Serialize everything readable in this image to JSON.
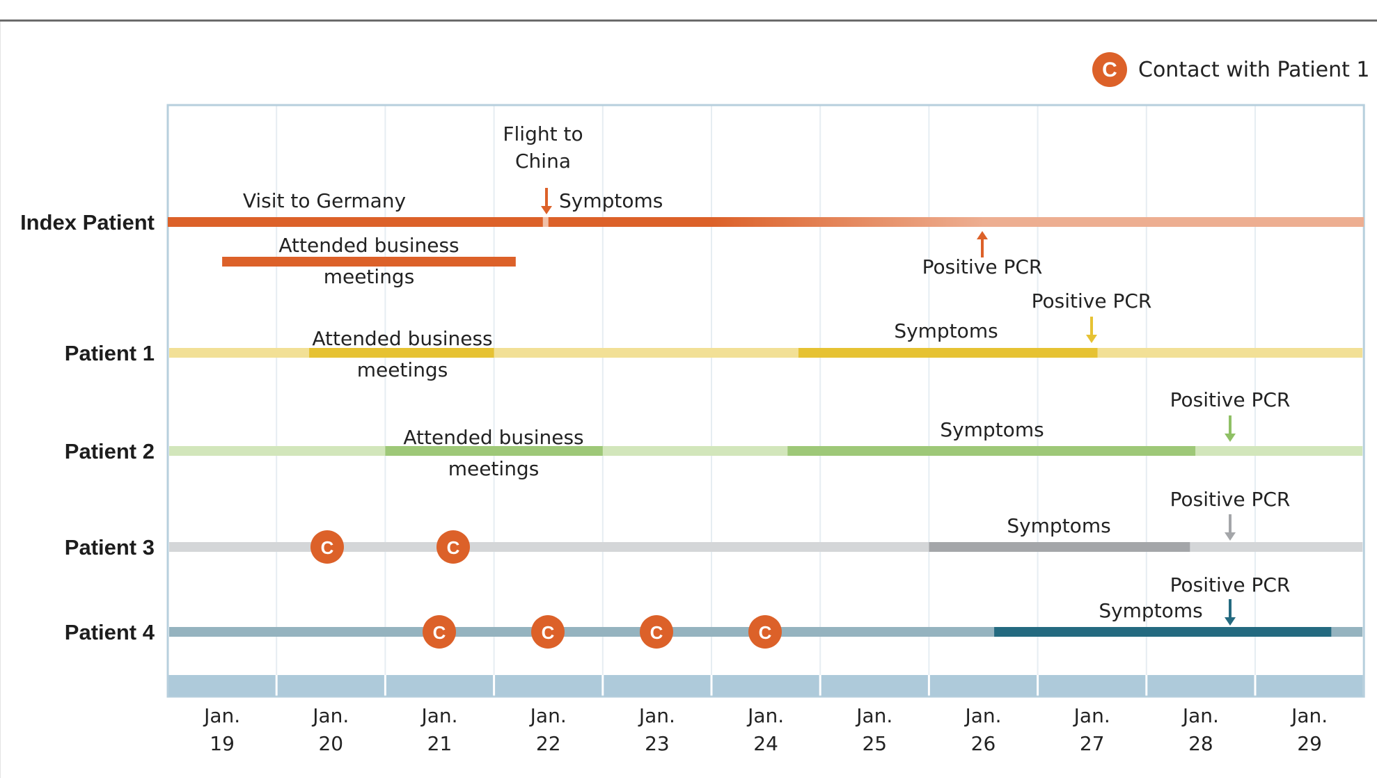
{
  "chart_data": {
    "type": "timeline",
    "title": "",
    "xlabel": "",
    "x_unit": "day of January (fractional; N.0 = start of day N)",
    "xlim": [
      19,
      30
    ],
    "ticks": [
      {
        "line1": "Jan.",
        "line2": "19",
        "day": 19
      },
      {
        "line1": "Jan.",
        "line2": "20",
        "day": 20
      },
      {
        "line1": "Jan.",
        "line2": "21",
        "day": 21
      },
      {
        "line1": "Jan.",
        "line2": "22",
        "day": 22
      },
      {
        "line1": "Jan.",
        "line2": "23",
        "day": 23
      },
      {
        "line1": "Jan.",
        "line2": "24",
        "day": 24
      },
      {
        "line1": "Jan.",
        "line2": "25",
        "day": 25
      },
      {
        "line1": "Jan.",
        "line2": "26",
        "day": 26
      },
      {
        "line1": "Jan.",
        "line2": "27",
        "day": 27
      },
      {
        "line1": "Jan.",
        "line2": "28",
        "day": 28
      },
      {
        "line1": "Jan.",
        "line2": "29",
        "day": 29
      }
    ],
    "legend": {
      "symbol": "C",
      "label": "Contact with Patient 1",
      "color": "#dc6129",
      "position": "top-right"
    },
    "rows": [
      {
        "name": "Index Patient",
        "base_color": "#dc6129",
        "faded_color": "#edae91",
        "segments": [
          {
            "start": 19.0,
            "end": 22.45,
            "color": "#dc6129",
            "label": "Visit to Germany"
          },
          {
            "start": 22.5,
            "end": 24.0,
            "color": "#dc6129",
            "label": "Symptoms",
            "fade_to": "#edae91",
            "fade_end": 26.5
          },
          {
            "start": 26.5,
            "end": 30.0,
            "color": "#edae91",
            "label": ""
          }
        ],
        "sub_bars": [
          {
            "start": 19.5,
            "end": 22.2,
            "color": "#dc6129",
            "label_line1": "Attended business",
            "label_line2": "meetings"
          }
        ],
        "events": [
          {
            "day": 22.5,
            "label_line1": "Flight to",
            "label_line2": "China",
            "direction": "down",
            "color": "#dc6129"
          },
          {
            "day": 26.5,
            "label_line1": "Positive PCR",
            "label_line2": "",
            "direction": "up",
            "color": "#dc6129"
          }
        ],
        "contacts": []
      },
      {
        "name": "Patient 1",
        "base_color": "#f2e096",
        "segments": [
          {
            "start": 20.3,
            "end": 22.0,
            "color": "#e6c233",
            "label_line1": "Attended business",
            "label_line2": "meetings"
          },
          {
            "start": 24.8,
            "end": 27.55,
            "color": "#e6c233",
            "label_line1": "Symptoms",
            "label_line2": ""
          }
        ],
        "events": [
          {
            "day": 27.5,
            "label_line1": "Positive PCR",
            "label_line2": "",
            "direction": "down",
            "color": "#e6c233"
          }
        ],
        "contacts": []
      },
      {
        "name": "Patient 2",
        "base_color": "#d2e6bb",
        "segments": [
          {
            "start": 21.0,
            "end": 23.0,
            "color": "#9ec878",
            "label_line1": "Attended business",
            "label_line2": "meetings"
          },
          {
            "start": 24.7,
            "end": 28.45,
            "color": "#9ec878",
            "label_line1": "Symptoms",
            "label_line2": ""
          }
        ],
        "events": [
          {
            "day": 28.75,
            "label_line1": "Positive PCR",
            "label_line2": "",
            "direction": "down",
            "color": "#8fc065"
          }
        ],
        "contacts": []
      },
      {
        "name": "Patient 3",
        "base_color": "#d4d6d8",
        "segments": [
          {
            "start": 26.0,
            "end": 28.4,
            "color": "#a4a6a9",
            "label_line1": "Symptoms",
            "label_line2": ""
          }
        ],
        "events": [
          {
            "day": 28.75,
            "label_line1": "Positive PCR",
            "label_line2": "",
            "direction": "down",
            "color": "#a4a6a9"
          }
        ],
        "contacts": [
          {
            "day": 20.5,
            "label": "C"
          },
          {
            "day": 21.65,
            "label": "C"
          }
        ]
      },
      {
        "name": "Patient 4",
        "base_color": "#95b3bf",
        "segments": [
          {
            "start": 26.6,
            "end": 29.7,
            "color": "#246a80",
            "label_line1": "Symptoms",
            "label_line2": ""
          }
        ],
        "events": [
          {
            "day": 28.75,
            "label_line1": "Positive PCR",
            "label_line2": "",
            "direction": "down",
            "color": "#246a80"
          }
        ],
        "contacts": [
          {
            "day": 21.5,
            "label": "C"
          },
          {
            "day": 22.5,
            "label": "C"
          },
          {
            "day": 23.5,
            "label": "C"
          },
          {
            "day": 24.5,
            "label": "C"
          }
        ]
      }
    ]
  }
}
